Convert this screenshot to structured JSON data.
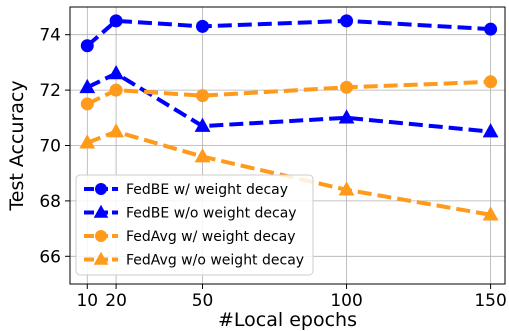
{
  "chart_data": {
    "type": "line",
    "title": "",
    "xlabel": "#Local epochs",
    "ylabel": "Test Accuracy",
    "x": [
      10,
      20,
      50,
      100,
      150
    ],
    "xlim": [
      4,
      155
    ],
    "ylim": [
      65,
      75
    ],
    "xticks": [
      10,
      20,
      50,
      100,
      150
    ],
    "yticks": [
      66,
      68,
      70,
      72,
      74
    ],
    "grid": true,
    "legend_position": "lower-left",
    "series": [
      {
        "name": "FedBE w/ weight decay",
        "color": "#0000ff",
        "marker": "circle",
        "values": [
          73.6,
          74.5,
          74.3,
          74.5,
          74.2
        ]
      },
      {
        "name": "FedBE w/o weight decay",
        "color": "#0000ff",
        "marker": "triangle",
        "values": [
          72.1,
          72.6,
          70.7,
          71.0,
          70.5
        ]
      },
      {
        "name": "FedAvg w/ weight decay",
        "color": "#ff9a1a",
        "marker": "circle",
        "values": [
          71.5,
          72.0,
          71.8,
          72.1,
          72.3
        ]
      },
      {
        "name": "FedAvg w/o weight decay",
        "color": "#ff9a1a",
        "marker": "triangle",
        "values": [
          70.1,
          70.5,
          69.6,
          68.4,
          67.5
        ]
      }
    ]
  }
}
